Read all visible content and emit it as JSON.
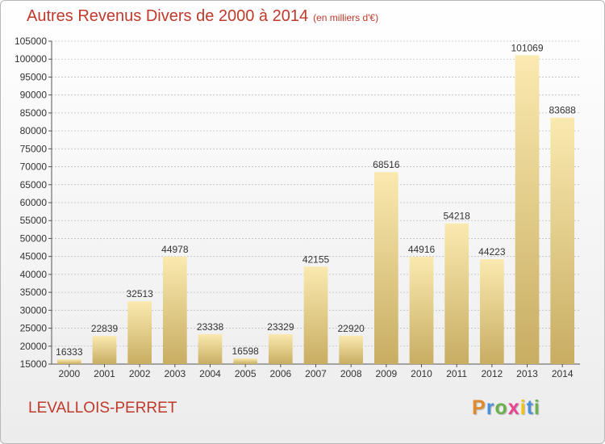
{
  "title": {
    "main": "Autres Revenus Divers de 2000 à 2014",
    "unit": "(en milliers d'€)"
  },
  "commune": "LEVALLOIS-PERRET",
  "brand": {
    "letters": [
      "P",
      "r",
      "o",
      "x",
      "i",
      "t",
      "i"
    ],
    "colors": [
      "#e08a2c",
      "#4a90d9",
      "#6ab04c",
      "#e84393",
      "#f1c40f",
      "#4a90d9",
      "#6ab04c"
    ]
  },
  "colors": {
    "bar_top": "#faeab0",
    "bar_bottom": "#c8ad62",
    "text": "#333333",
    "accent": "#c0392b",
    "grid": "#bfbfbf"
  },
  "chart_data": {
    "type": "bar",
    "categories": [
      "2000",
      "2001",
      "2002",
      "2003",
      "2004",
      "2005",
      "2006",
      "2007",
      "2008",
      "2009",
      "2010",
      "2011",
      "2012",
      "2013",
      "2014"
    ],
    "values": [
      16333,
      22839,
      32513,
      44978,
      23338,
      16598,
      23329,
      42155,
      22920,
      68516,
      44916,
      54218,
      44223,
      101069,
      83688
    ],
    "ylim": [
      15000,
      105000
    ],
    "yticks": [
      15000,
      20000,
      25000,
      30000,
      35000,
      40000,
      45000,
      50000,
      55000,
      60000,
      65000,
      70000,
      75000,
      80000,
      85000,
      90000,
      95000,
      100000,
      105000
    ],
    "grid": true,
    "data_labels": true
  }
}
